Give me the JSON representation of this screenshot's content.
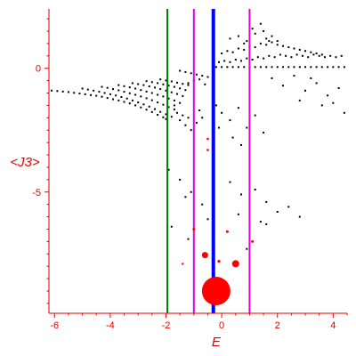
{
  "chart_data": {
    "type": "scatter",
    "xlabel": "E",
    "ylabel": "<J3>",
    "xlim": [
      -6.2,
      4.5
    ],
    "ylim": [
      -9.9,
      2.4
    ],
    "xticks": [
      -6,
      -4,
      -2,
      0,
      2,
      4
    ],
    "xtick_labels": [
      "-6",
      "-4",
      "-2",
      "0",
      "2",
      "4"
    ],
    "yticks": [
      0,
      -5
    ],
    "ytick_labels": [
      "0",
      "-5"
    ],
    "grid": false,
    "colors": {
      "axis": "#e00000",
      "points": "#000000",
      "highlight": "#ff0000",
      "line_green": "#008000",
      "line_magenta": "#e000e0",
      "line_blue": "#0000ff"
    },
    "vertical_lines": [
      {
        "x": -1.95,
        "color": "#008000",
        "width": 2
      },
      {
        "x": -1.0,
        "color": "#e000e0",
        "width": 2
      },
      {
        "x": -0.3,
        "color": "#0000ff",
        "width": 4
      },
      {
        "x": 1.0,
        "color": "#e000e0",
        "width": 2
      }
    ],
    "highlight_points": [
      {
        "x": -0.2,
        "y": -9.0,
        "r": 16
      },
      {
        "x": 0.5,
        "y": -7.9,
        "r": 4
      },
      {
        "x": -0.6,
        "y": -7.55,
        "r": 3.5
      },
      {
        "x": -0.1,
        "y": -7.8,
        "r": 1.6
      },
      {
        "x": -0.5,
        "y": -2.85,
        "r": 1.3
      },
      {
        "x": -0.5,
        "y": -3.3,
        "r": 1.3
      },
      {
        "x": -1.0,
        "y": -6.5,
        "r": 1.5
      },
      {
        "x": 0.2,
        "y": -6.6,
        "r": 1.5
      },
      {
        "x": 1.1,
        "y": -7.0,
        "r": 1.5
      },
      {
        "x": -1.4,
        "y": -7.9,
        "r": 1.2
      }
    ],
    "series": [
      {
        "points": [
          [
            -6.1,
            -0.9
          ],
          [
            -5.9,
            -0.92
          ],
          [
            -5.7,
            -0.94
          ],
          [
            -5.5,
            -0.96
          ],
          [
            -5.3,
            -0.99
          ],
          [
            -5.1,
            -1.02
          ],
          [
            -4.9,
            -1.05
          ],
          [
            -4.7,
            -1.08
          ],
          [
            -4.5,
            -1.11
          ],
          [
            -4.3,
            -1.15
          ],
          [
            -4.1,
            -1.2
          ],
          [
            -3.9,
            -1.25
          ],
          [
            -3.7,
            -1.3
          ],
          [
            -3.5,
            -1.36
          ],
          [
            -3.3,
            -1.42
          ],
          [
            -3.1,
            -1.5
          ],
          [
            -2.9,
            -1.58
          ],
          [
            -2.7,
            -1.67
          ],
          [
            -2.5,
            -1.77
          ],
          [
            -2.3,
            -1.88
          ],
          [
            -2.1,
            -1.98
          ],
          [
            -2.0,
            -2.05
          ],
          [
            -5.0,
            -0.82
          ],
          [
            -4.8,
            -0.86
          ],
          [
            -4.6,
            -0.9
          ],
          [
            -4.4,
            -0.95
          ],
          [
            -4.2,
            -1.0
          ],
          [
            -4.0,
            -1.05
          ],
          [
            -3.8,
            -1.1
          ],
          [
            -3.6,
            -1.16
          ],
          [
            -3.4,
            -1.22
          ],
          [
            -3.2,
            -1.3
          ],
          [
            -3.0,
            -1.38
          ],
          [
            -2.8,
            -1.46
          ],
          [
            -2.6,
            -1.55
          ],
          [
            -2.4,
            -1.65
          ],
          [
            -2.2,
            -1.76
          ],
          [
            -2.0,
            -1.86
          ],
          [
            -1.8,
            -1.96
          ],
          [
            -4.3,
            -0.75
          ],
          [
            -4.1,
            -0.79
          ],
          [
            -3.9,
            -0.84
          ],
          [
            -3.7,
            -0.89
          ],
          [
            -3.5,
            -0.95
          ],
          [
            -3.3,
            -1.01
          ],
          [
            -3.1,
            -1.07
          ],
          [
            -2.9,
            -1.14
          ],
          [
            -2.7,
            -1.21
          ],
          [
            -2.5,
            -1.29
          ],
          [
            -2.3,
            -1.38
          ],
          [
            -2.1,
            -1.47
          ],
          [
            -1.9,
            -1.57
          ],
          [
            -1.7,
            -1.66
          ],
          [
            -3.7,
            -0.68
          ],
          [
            -3.5,
            -0.72
          ],
          [
            -3.3,
            -0.77
          ],
          [
            -3.1,
            -0.82
          ],
          [
            -2.9,
            -0.88
          ],
          [
            -2.7,
            -0.94
          ],
          [
            -2.5,
            -1.0
          ],
          [
            -2.3,
            -1.07
          ],
          [
            -2.1,
            -1.14
          ],
          [
            -1.9,
            -1.22
          ],
          [
            -1.7,
            -1.3
          ],
          [
            -1.5,
            -1.4
          ],
          [
            -3.2,
            -0.6
          ],
          [
            -3.0,
            -0.64
          ],
          [
            -2.8,
            -0.68
          ],
          [
            -2.6,
            -0.73
          ],
          [
            -2.4,
            -0.78
          ],
          [
            -2.2,
            -0.84
          ],
          [
            -2.0,
            -0.9
          ],
          [
            -1.8,
            -0.97
          ],
          [
            -1.6,
            -1.04
          ],
          [
            -1.4,
            -1.12
          ],
          [
            -2.7,
            -0.52
          ],
          [
            -2.5,
            -0.56
          ],
          [
            -2.3,
            -0.6
          ],
          [
            -2.1,
            -0.65
          ],
          [
            -1.9,
            -0.7
          ],
          [
            -1.7,
            -0.75
          ],
          [
            -1.5,
            -0.81
          ],
          [
            -1.3,
            -0.88
          ],
          [
            -2.2,
            -0.45
          ],
          [
            -2.0,
            -0.49
          ],
          [
            -1.8,
            -0.53
          ],
          [
            -1.6,
            -0.58
          ],
          [
            -1.4,
            -0.63
          ],
          [
            -1.2,
            -0.68
          ],
          [
            -1.7,
            -1.5
          ],
          [
            -1.6,
            -1.8
          ],
          [
            -1.5,
            -2.1
          ],
          [
            -1.4,
            -1.9
          ],
          [
            -1.3,
            -2.3
          ],
          [
            -1.2,
            -2.0
          ],
          [
            -1.1,
            -2.5
          ],
          [
            -0.9,
            -2.2
          ],
          [
            -0.8,
            -1.7
          ],
          [
            -0.7,
            -2.0
          ],
          [
            -1.5,
            -0.1
          ],
          [
            -1.3,
            -0.15
          ],
          [
            -1.1,
            -0.2
          ],
          [
            -0.9,
            -0.25
          ],
          [
            -0.7,
            -0.3
          ],
          [
            -0.5,
            -0.35
          ],
          [
            -1.2,
            -0.6
          ],
          [
            -1.0,
            -0.5
          ],
          [
            -0.8,
            -0.45
          ],
          [
            -0.6,
            -0.65
          ],
          [
            -0.2,
            -1.5
          ],
          [
            0.0,
            -1.8
          ],
          [
            0.3,
            -2.1
          ],
          [
            0.6,
            -1.6
          ],
          [
            0.9,
            -2.4
          ],
          [
            1.2,
            -1.9
          ],
          [
            1.5,
            -2.6
          ],
          [
            0.4,
            -2.8
          ],
          [
            -0.1,
            -2.4
          ],
          [
            0.7,
            -3.1
          ],
          [
            -0.2,
            0.05
          ],
          [
            0.0,
            0.05
          ],
          [
            0.2,
            0.05
          ],
          [
            0.4,
            0.05
          ],
          [
            0.6,
            0.05
          ],
          [
            0.8,
            0.05
          ],
          [
            1.0,
            0.05
          ],
          [
            1.2,
            0.05
          ],
          [
            1.4,
            0.05
          ],
          [
            1.6,
            0.05
          ],
          [
            1.8,
            0.05
          ],
          [
            2.0,
            0.05
          ],
          [
            2.2,
            0.05
          ],
          [
            2.4,
            0.05
          ],
          [
            2.6,
            0.05
          ],
          [
            2.8,
            0.05
          ],
          [
            3.0,
            0.05
          ],
          [
            3.2,
            0.05
          ],
          [
            3.4,
            0.05
          ],
          [
            3.6,
            0.05
          ],
          [
            3.8,
            0.05
          ],
          [
            4.0,
            0.05
          ],
          [
            4.2,
            0.05
          ],
          [
            4.4,
            0.05
          ],
          [
            -0.1,
            0.25
          ],
          [
            0.1,
            0.3
          ],
          [
            0.3,
            0.25
          ],
          [
            0.5,
            0.35
          ],
          [
            0.7,
            0.3
          ],
          [
            0.9,
            0.4
          ],
          [
            1.1,
            0.35
          ],
          [
            1.3,
            0.45
          ],
          [
            1.5,
            0.4
          ],
          [
            1.7,
            0.5
          ],
          [
            1.9,
            0.45
          ],
          [
            2.1,
            0.55
          ],
          [
            2.3,
            0.5
          ],
          [
            2.5,
            0.45
          ],
          [
            2.7,
            0.55
          ],
          [
            2.9,
            0.5
          ],
          [
            3.1,
            0.45
          ],
          [
            3.3,
            0.55
          ],
          [
            3.5,
            0.5
          ],
          [
            3.7,
            0.45
          ],
          [
            3.9,
            0.5
          ],
          [
            4.1,
            0.45
          ],
          [
            4.3,
            0.5
          ],
          [
            0.0,
            0.6
          ],
          [
            0.2,
            0.7
          ],
          [
            0.4,
            0.65
          ],
          [
            0.6,
            0.8
          ],
          [
            0.8,
            0.75
          ],
          [
            1.0,
            0.9
          ],
          [
            1.2,
            0.85
          ],
          [
            1.4,
            1.0
          ],
          [
            1.6,
            0.95
          ],
          [
            1.8,
            1.05
          ],
          [
            2.0,
            0.95
          ],
          [
            2.2,
            0.9
          ],
          [
            2.4,
            0.85
          ],
          [
            2.6,
            0.8
          ],
          [
            2.8,
            0.75
          ],
          [
            3.0,
            0.7
          ],
          [
            3.2,
            0.65
          ],
          [
            3.4,
            0.6
          ],
          [
            3.6,
            0.55
          ],
          [
            0.3,
            1.2
          ],
          [
            0.6,
            1.3
          ],
          [
            0.9,
            1.1
          ],
          [
            1.2,
            1.4
          ],
          [
            1.5,
            1.5
          ],
          [
            1.6,
            1.2
          ],
          [
            1.8,
            1.3
          ],
          [
            2.0,
            1.1
          ],
          [
            1.1,
            1.6
          ],
          [
            1.4,
            1.8
          ],
          [
            1.7,
            1.1
          ],
          [
            0.8,
            1.0
          ],
          [
            1.8,
            -0.4
          ],
          [
            2.2,
            -0.7
          ],
          [
            2.6,
            -0.3
          ],
          [
            3.0,
            -0.9
          ],
          [
            3.4,
            -0.6
          ],
          [
            3.8,
            -1.1
          ],
          [
            4.2,
            -0.8
          ],
          [
            2.8,
            -1.3
          ],
          [
            3.6,
            -1.5
          ],
          [
            4.4,
            -1.8
          ],
          [
            4.0,
            -1.4
          ],
          [
            3.2,
            -0.4
          ],
          [
            -1.9,
            -4.1
          ],
          [
            -1.5,
            -4.5
          ],
          [
            -1.1,
            -5.0
          ],
          [
            -0.7,
            -5.5
          ],
          [
            -0.3,
            -4.8
          ],
          [
            0.3,
            -4.6
          ],
          [
            0.7,
            -5.1
          ],
          [
            1.2,
            -4.9
          ],
          [
            1.6,
            -5.4
          ],
          [
            2.0,
            -5.8
          ],
          [
            2.4,
            -5.6
          ],
          [
            2.8,
            -6.0
          ],
          [
            1.4,
            -6.2
          ],
          [
            0.6,
            -5.9
          ],
          [
            -0.5,
            -6.1
          ],
          [
            -1.3,
            -5.2
          ],
          [
            -1.8,
            -6.4
          ],
          [
            -1.2,
            -6.9
          ],
          [
            0.9,
            -7.3
          ],
          [
            1.6,
            -6.3
          ]
        ]
      }
    ]
  }
}
